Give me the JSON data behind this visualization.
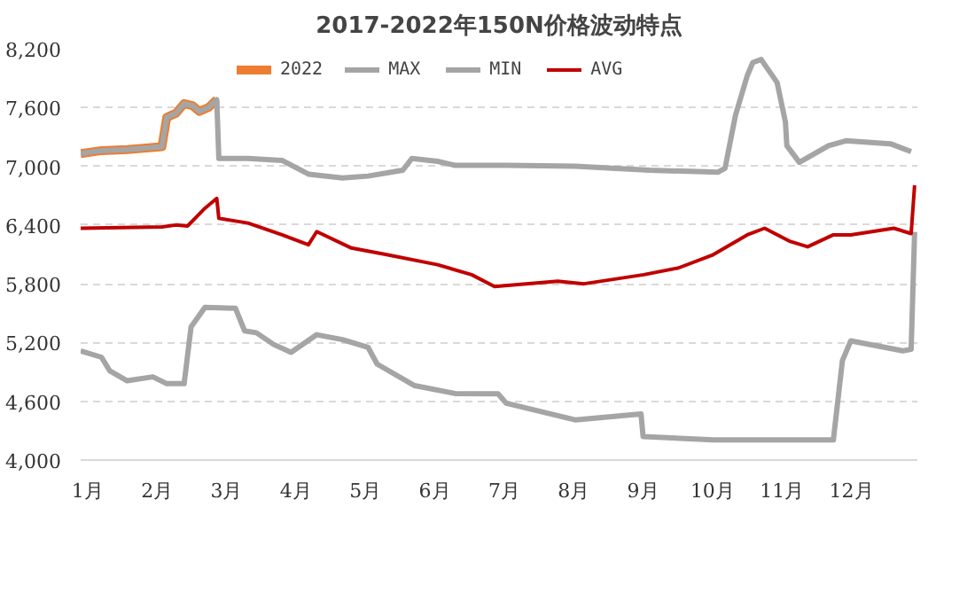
{
  "chart_data": {
    "type": "line",
    "title": "2017-2022年150N价格波动特点",
    "xlim": [
      0.9,
      12.95
    ],
    "xticks": [
      {
        "value": 1,
        "label": "1月"
      },
      {
        "value": 2,
        "label": "2月"
      },
      {
        "value": 3,
        "label": "3月"
      },
      {
        "value": 4,
        "label": "4月"
      },
      {
        "value": 5,
        "label": "5月"
      },
      {
        "value": 6,
        "label": "6月"
      },
      {
        "value": 7,
        "label": "7月"
      },
      {
        "value": 8,
        "label": "8月"
      },
      {
        "value": 9,
        "label": "9月"
      },
      {
        "value": 10,
        "label": "10月"
      },
      {
        "value": 11,
        "label": "11月"
      },
      {
        "value": 12,
        "label": "12月"
      }
    ],
    "ylim": [
      4000,
      8200
    ],
    "yticks": [
      {
        "value": 4000,
        "label": "4,000"
      },
      {
        "value": 4600,
        "label": "4,600"
      },
      {
        "value": 5200,
        "label": "5,200"
      },
      {
        "value": 5800,
        "label": "5,800"
      },
      {
        "value": 6400,
        "label": "6,400"
      },
      {
        "value": 7000,
        "label": "7,000"
      },
      {
        "value": 7600,
        "label": "7,600"
      },
      {
        "value": 8200,
        "label": "8,200"
      }
    ],
    "grid": "y",
    "legend": "top",
    "line_style": "solid",
    "marker": "none",
    "series": [
      {
        "name": "2022",
        "color": "#ed7d31",
        "x": [
          0.9,
          1.2,
          1.57,
          2.07,
          2.14,
          2.27,
          2.39,
          2.51,
          2.61,
          2.74,
          2.86
        ],
        "values": [
          7130,
          7160,
          7170,
          7200,
          7500,
          7540,
          7640,
          7620,
          7560,
          7600,
          7680
        ]
      },
      {
        "name": "MAX",
        "color": "#a5a5a5",
        "x": [
          0.9,
          1.2,
          1.57,
          2.07,
          2.14,
          2.27,
          2.39,
          2.51,
          2.61,
          2.74,
          2.86,
          2.89,
          3.31,
          3.8,
          4.18,
          4.67,
          5.04,
          5.54,
          5.67,
          6.04,
          6.29,
          7.03,
          8.02,
          9.09,
          10.08,
          10.18,
          10.33,
          10.5,
          10.58,
          10.7,
          10.93,
          11.05,
          11.07,
          11.25,
          11.67,
          11.92,
          12.56,
          12.86
        ],
        "values": [
          7130,
          7160,
          7170,
          7200,
          7500,
          7540,
          7640,
          7620,
          7560,
          7600,
          7680,
          7080,
          7080,
          7060,
          6920,
          6880,
          6900,
          6960,
          7080,
          7050,
          7010,
          7010,
          7000,
          6960,
          6940,
          6980,
          7520,
          7925,
          8060,
          8090,
          7855,
          7450,
          7210,
          7040,
          7210,
          7260,
          7230,
          7150
        ]
      },
      {
        "name": "MIN",
        "color": "#a5a5a5",
        "x": [
          0.9,
          1.2,
          1.32,
          1.57,
          1.94,
          2.14,
          2.39,
          2.49,
          2.69,
          3.13,
          3.26,
          3.43,
          3.68,
          3.93,
          4.3,
          4.67,
          5.04,
          5.17,
          5.71,
          6.29,
          6.91,
          7.03,
          8.02,
          8.97,
          9.0,
          10.01,
          11.74,
          11.87,
          11.99,
          12.24,
          12.74,
          12.86,
          12.91
        ],
        "values": [
          5115,
          5050,
          4910,
          4810,
          4850,
          4780,
          4780,
          5360,
          5560,
          5550,
          5320,
          5300,
          5180,
          5100,
          5280,
          5230,
          5150,
          4980,
          4760,
          4680,
          4676,
          4580,
          4410,
          4470,
          4240,
          4205,
          4205,
          5015,
          5217,
          5184,
          5116,
          5130,
          6330
        ]
      },
      {
        "name": "AVG",
        "color": "#c00000",
        "x": [
          0.9,
          2.07,
          2.27,
          2.44,
          2.69,
          2.86,
          2.89,
          3.31,
          3.8,
          4.18,
          4.3,
          4.8,
          5.29,
          6.04,
          6.53,
          6.86,
          7.77,
          8.15,
          9.01,
          9.51,
          10.01,
          10.5,
          10.75,
          11.12,
          11.37,
          11.74,
          11.99,
          12.61,
          12.86,
          12.91
        ],
        "values": [
          6367,
          6380,
          6400,
          6390,
          6571,
          6672,
          6469,
          6420,
          6300,
          6198,
          6333,
          6165,
          6100,
          5995,
          5893,
          5772,
          5826,
          5800,
          5893,
          5962,
          6097,
          6300,
          6367,
          6232,
          6178,
          6300,
          6300,
          6367,
          6313,
          6806
        ]
      }
    ]
  }
}
